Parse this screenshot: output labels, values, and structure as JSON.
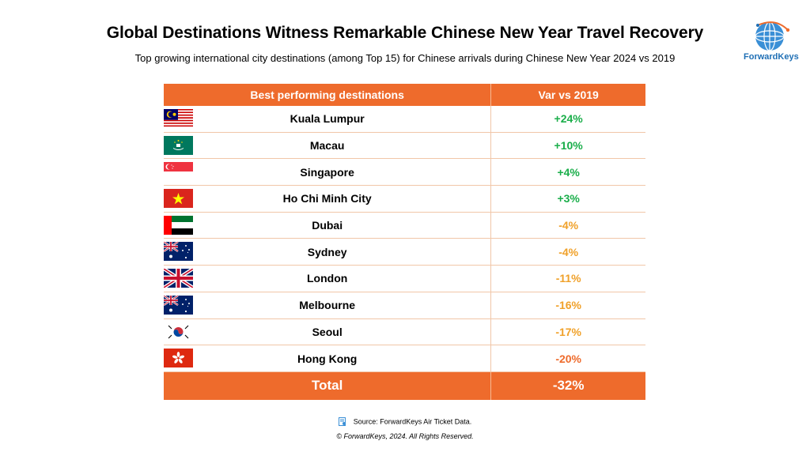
{
  "title": "Global Destinations Witness Remarkable Chinese New Year Travel Recovery",
  "subtitle": "Top growing international city destinations (among Top 15) for Chinese arrivals during Chinese New Year 2024 vs 2019",
  "logo_text": "ForwardKeys",
  "colors": {
    "header": "#ee6b2c",
    "positive": "#1aae4a",
    "negative_mild": "#f0a12a",
    "negative_strong": "#ee6b2c"
  },
  "chart_data": {
    "type": "table",
    "columns": [
      "Best performing destinations",
      "Var vs 2019"
    ],
    "rows": [
      {
        "destination": "Kuala Lumpur",
        "variation": "+24%",
        "value": 24,
        "flag": "malaysia-flag"
      },
      {
        "destination": "Macau",
        "variation": "+10%",
        "value": 10,
        "flag": "macau-flag"
      },
      {
        "destination": "Singapore",
        "variation": "+4%",
        "value": 4,
        "flag": "singapore-flag"
      },
      {
        "destination": "Ho Chi Minh City",
        "variation": "+3%",
        "value": 3,
        "flag": "vietnam-flag"
      },
      {
        "destination": "Dubai",
        "variation": "-4%",
        "value": -4,
        "flag": "uae-flag"
      },
      {
        "destination": "Sydney",
        "variation": "-4%",
        "value": -4,
        "flag": "australia-flag"
      },
      {
        "destination": "London",
        "variation": "-11%",
        "value": -11,
        "flag": "uk-flag"
      },
      {
        "destination": "Melbourne",
        "variation": "-16%",
        "value": -16,
        "flag": "australia-flag"
      },
      {
        "destination": "Seoul",
        "variation": "-17%",
        "value": -17,
        "flag": "south-korea-flag"
      },
      {
        "destination": "Hong Kong",
        "variation": "-20%",
        "value": -20,
        "flag": "hong-kong-flag"
      }
    ],
    "total": {
      "label": "Total",
      "variation": "-32%",
      "value": -32
    }
  },
  "source_text": "Source: ForwardKeys Air Ticket Data.",
  "copyright": "© ForwardKeys, 2024. All Rights Reserved."
}
